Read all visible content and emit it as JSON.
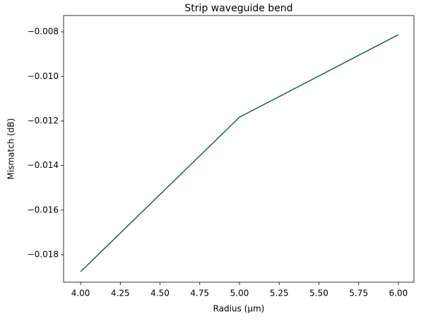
{
  "chart_data": {
    "type": "line",
    "title": "Strip waveguide bend",
    "x_label": "Radius (µm)",
    "y_label": "Mismatch (dB)",
    "x": [
      4,
      5,
      6
    ],
    "series": [
      {
        "name": "Mismatch",
        "color": "#1b6a36",
        "values": [
          -0.01876,
          -0.01183,
          -0.00813
        ]
      }
    ],
    "xlim": [
      3.893,
      6.098
    ],
    "ylim": [
      -0.01923,
      -0.00727
    ],
    "xticks": [
      {
        "value": 4,
        "label": "4.00"
      },
      {
        "value": 4.25,
        "label": "4.25"
      },
      {
        "value": 4.5,
        "label": "4.50"
      },
      {
        "value": 4.75,
        "label": "4.75"
      },
      {
        "value": 5,
        "label": "5.00"
      },
      {
        "value": 5.25,
        "label": "5.25"
      },
      {
        "value": 5.5,
        "label": "5.50"
      },
      {
        "value": 5.75,
        "label": "5.75"
      },
      {
        "value": 6,
        "label": "6.00"
      }
    ],
    "yticks": [
      {
        "value": -0.018,
        "label": "−0.018"
      },
      {
        "value": -0.016,
        "label": "−0.016"
      },
      {
        "value": -0.014,
        "label": "−0.014"
      },
      {
        "value": -0.012,
        "label": "−0.012"
      },
      {
        "value": -0.01,
        "label": "−0.010"
      },
      {
        "value": -0.008,
        "label": "−0.008"
      }
    ],
    "grid": false
  }
}
